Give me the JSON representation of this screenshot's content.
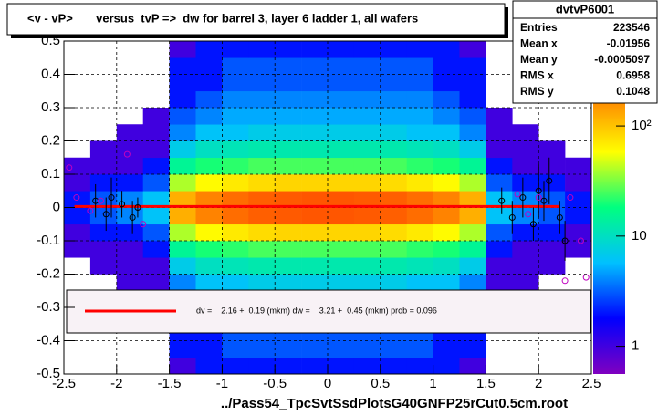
{
  "chart_data": {
    "type": "heatmap",
    "title": "<v - vP>       versus  tvP =>  dw for barrel 3, layer 6 ladder 1, all wafers",
    "footer": "../Pass54_TpcSvtSsdPlotsG40GNFP25rCut0.5cm.root",
    "xlim": [
      -2.5,
      2.5
    ],
    "ylim": [
      -0.5,
      0.5
    ],
    "xticks": [
      -2.5,
      -2,
      -1.5,
      -1,
      -0.5,
      0,
      0.5,
      1,
      1.5,
      2,
      2.5
    ],
    "yticks": [
      -0.5,
      -0.4,
      -0.3,
      -0.2,
      -0.1,
      0,
      0.1,
      0.2,
      0.3,
      0.4,
      0.5
    ],
    "grid": true,
    "zlog": true,
    "zlim": [
      0.56,
      590
    ],
    "zticks": [
      1,
      10,
      {
        "value": 100,
        "label": "10²"
      }
    ],
    "palette": [
      "#8000c0",
      "#0000ff",
      "#00c0ff",
      "#00ff80",
      "#ffff00",
      "#ff8000",
      "#ff0000"
    ],
    "xbins": [
      -2.5,
      -2.25,
      -2,
      -1.75,
      -1.5,
      -1.25,
      -1,
      -0.75,
      -0.5,
      -0.25,
      0,
      0.25,
      0.5,
      0.75,
      1,
      1.25,
      1.5,
      1.75,
      2,
      2.25,
      2.5
    ],
    "ybins": [
      -0.5,
      -0.45,
      -0.4,
      -0.35,
      -0.3,
      -0.25,
      -0.2,
      -0.15,
      -0.1,
      -0.05,
      0,
      0.05,
      0.1,
      0.15,
      0.2,
      0.25,
      0.3,
      0.35,
      0.4,
      0.45,
      0.5
    ],
    "z": [
      [
        0,
        0,
        0,
        0,
        1,
        2,
        2,
        2,
        2,
        2,
        2,
        2,
        2,
        2,
        2,
        1,
        0,
        0,
        0,
        0
      ],
      [
        0,
        0,
        0,
        0,
        2,
        2,
        3,
        3,
        3,
        3,
        3,
        3,
        3,
        3,
        2,
        2,
        0,
        0,
        0,
        0
      ],
      [
        0,
        0,
        0,
        0,
        2,
        2,
        3,
        3,
        3,
        3,
        3,
        3,
        3,
        3,
        2,
        2,
        0,
        0,
        0,
        0
      ],
      [
        0,
        0,
        0,
        0,
        2,
        3,
        4,
        4,
        4,
        4,
        4,
        4,
        4,
        4,
        3,
        2,
        0,
        0,
        0,
        0
      ],
      [
        0,
        0,
        0,
        1,
        3,
        4,
        5,
        5,
        5,
        5,
        5,
        5,
        5,
        5,
        4,
        3,
        1,
        0,
        0,
        0
      ],
      [
        0,
        0,
        1,
        1,
        4,
        6,
        6,
        7,
        7,
        7,
        7,
        7,
        7,
        6,
        6,
        4,
        1,
        1,
        0,
        0
      ],
      [
        0,
        1,
        1,
        1,
        7,
        10,
        11,
        12,
        12,
        12,
        12,
        12,
        12,
        11,
        10,
        7,
        1,
        1,
        1,
        0
      ],
      [
        1,
        1,
        1,
        2,
        15,
        20,
        22,
        25,
        25,
        25,
        25,
        25,
        25,
        22,
        20,
        15,
        2,
        1,
        1,
        1
      ],
      [
        1,
        2,
        2,
        3,
        40,
        60,
        70,
        80,
        85,
        85,
        85,
        85,
        80,
        70,
        60,
        40,
        3,
        2,
        2,
        1
      ],
      [
        2,
        3,
        4,
        6,
        120,
        180,
        220,
        250,
        260,
        270,
        270,
        260,
        250,
        220,
        180,
        120,
        6,
        4,
        3,
        2
      ],
      [
        2,
        3,
        4,
        6,
        120,
        180,
        220,
        250,
        260,
        270,
        270,
        260,
        250,
        220,
        180,
        120,
        6,
        4,
        3,
        2
      ],
      [
        1,
        2,
        2,
        3,
        40,
        60,
        70,
        80,
        85,
        85,
        85,
        85,
        80,
        70,
        60,
        40,
        3,
        2,
        2,
        1
      ],
      [
        1,
        1,
        1,
        2,
        15,
        20,
        22,
        25,
        25,
        25,
        25,
        25,
        25,
        22,
        20,
        15,
        2,
        1,
        1,
        1
      ],
      [
        0,
        1,
        1,
        1,
        7,
        10,
        11,
        12,
        12,
        12,
        12,
        12,
        12,
        11,
        10,
        7,
        1,
        1,
        1,
        0
      ],
      [
        0,
        0,
        1,
        1,
        4,
        6,
        6,
        7,
        7,
        7,
        7,
        7,
        7,
        6,
        6,
        4,
        1,
        1,
        0,
        0
      ],
      [
        0,
        0,
        0,
        1,
        3,
        4,
        5,
        5,
        5,
        5,
        5,
        5,
        5,
        5,
        4,
        3,
        1,
        0,
        0,
        0
      ],
      [
        0,
        0,
        0,
        0,
        2,
        3,
        4,
        4,
        4,
        4,
        4,
        4,
        4,
        4,
        3,
        2,
        0,
        0,
        0,
        0
      ],
      [
        0,
        0,
        0,
        0,
        2,
        2,
        3,
        3,
        3,
        3,
        3,
        3,
        3,
        3,
        2,
        2,
        0,
        0,
        0,
        0
      ],
      [
        0,
        0,
        0,
        0,
        2,
        2,
        3,
        3,
        3,
        3,
        3,
        3,
        3,
        3,
        2,
        2,
        0,
        0,
        0,
        0
      ],
      [
        0,
        0,
        0,
        0,
        1,
        2,
        2,
        2,
        2,
        2,
        2,
        2,
        2,
        2,
        2,
        1,
        0,
        0,
        0,
        0
      ]
    ],
    "profile": {
      "color": "#000000",
      "x": [
        -2.2,
        -2.1,
        -2.05,
        -1.95,
        -1.85,
        -1.8,
        1.65,
        1.75,
        1.85,
        1.95,
        2.0,
        2.05,
        2.1,
        2.2,
        2.25
      ],
      "values": [
        0.02,
        -0.02,
        0.03,
        0.01,
        -0.03,
        0.0,
        0.02,
        -0.03,
        0.03,
        -0.05,
        0.05,
        0.02,
        0.08,
        -0.03,
        -0.1
      ],
      "errors": [
        0.05,
        0.05,
        0.06,
        0.04,
        0.05,
        0.03,
        0.04,
        0.05,
        0.06,
        0.05,
        0.08,
        0.06,
        0.07,
        0.05,
        0.06
      ]
    },
    "points": {
      "color": "#c000c0",
      "x": [
        -2.45,
        -2.38,
        -2.25,
        -2.15,
        -1.9,
        -1.75,
        1.8,
        1.9,
        2.0,
        2.25,
        2.3,
        2.4,
        2.45
      ],
      "values": [
        0.12,
        0.03,
        -0.01,
        0.02,
        0.16,
        -0.05,
        0.04,
        -0.02,
        0.03,
        -0.22,
        0.03,
        -0.1,
        -0.21
      ]
    },
    "fit": {
      "color": "#ff0000",
      "x": [
        -2.4,
        2.2
      ],
      "values": [
        0.003,
        0.003
      ]
    },
    "legend": "dv =    2.16 +  0.19 (mkm) dw =    3.21 +  0.45 (mkm) prob = 0.096",
    "stats": {
      "title": "dvtvP6001",
      "rows": [
        [
          "Entries",
          "223546"
        ],
        [
          "Mean x",
          "-0.01956"
        ],
        [
          "Mean y",
          "-0.0005097"
        ],
        [
          "RMS x",
          "0.6958"
        ],
        [
          "RMS y",
          "0.1048"
        ]
      ]
    }
  }
}
